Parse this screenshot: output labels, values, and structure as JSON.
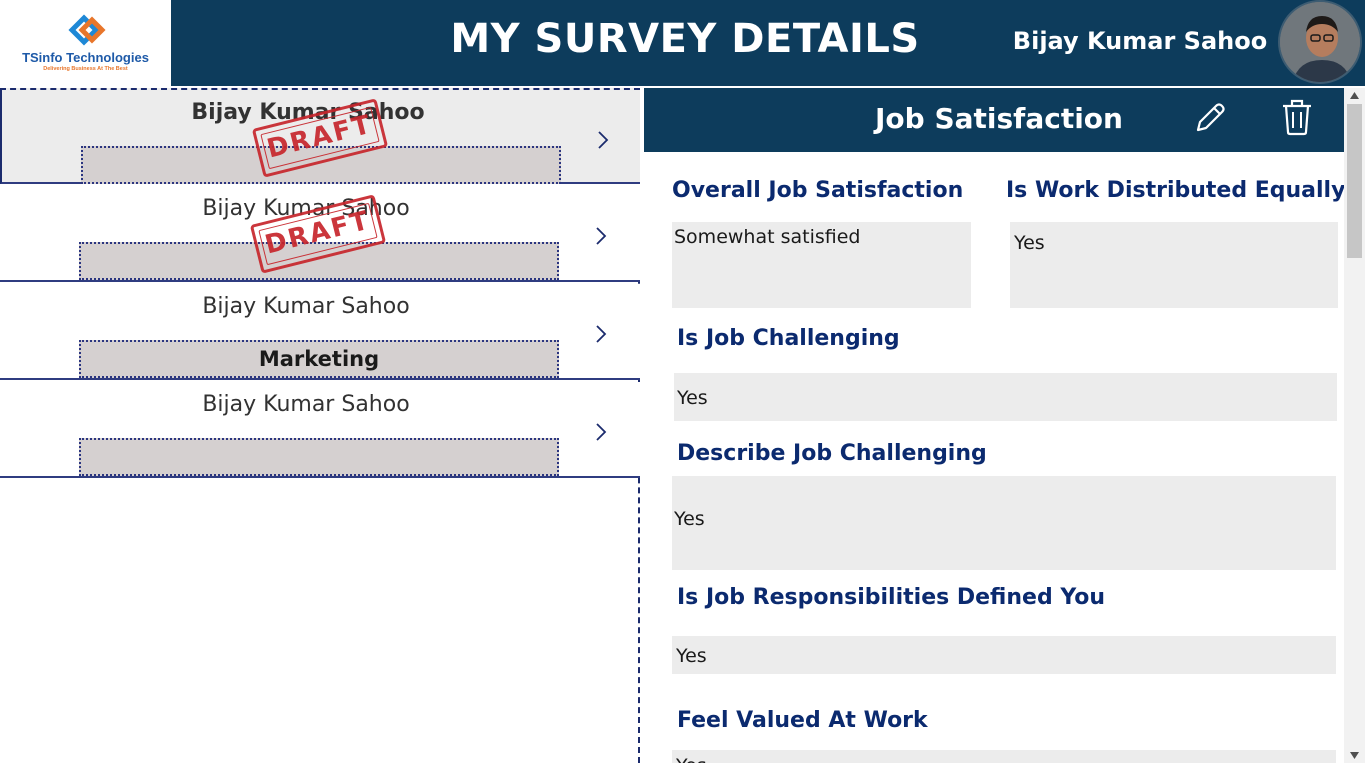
{
  "header": {
    "logo": {
      "name": "TSinfo Technologies",
      "tagline": "Delivering Business At The Best"
    },
    "title": "MY SURVEY DETAILS",
    "user_name": "Bijay Kumar Sahoo"
  },
  "gallery": {
    "items": [
      {
        "name": "Bijay Kumar Sahoo",
        "department": "",
        "stamp": "DRAFT",
        "selected": true
      },
      {
        "name": "Bijay Kumar Sahoo",
        "department": "",
        "stamp": "DRAFT",
        "selected": false
      },
      {
        "name": "Bijay Kumar Sahoo",
        "department": "Marketing",
        "stamp": "",
        "selected": false
      },
      {
        "name": "Bijay Kumar Sahoo",
        "department": "",
        "stamp": "",
        "selected": false
      }
    ]
  },
  "detail": {
    "title": "Job Satisfaction",
    "fields": {
      "overall_label": "Overall Job Satisfaction",
      "overall_value": "Somewhat satisfied",
      "distributed_label": "Is Work Distributed Equally",
      "distributed_value": "Yes",
      "challenging_label": "Is Job Challenging",
      "challenging_value": "Yes",
      "describe_label": "Describe Job Challenging",
      "describe_value": "Yes",
      "responsibilities_label": "Is Job Responsibilities Defined You",
      "responsibilities_value": "Yes",
      "valued_label": "Feel Valued At Work",
      "valued_value": "Yes"
    }
  },
  "colors": {
    "header_bg": "#0d3c5c",
    "label_color": "#0b2a6f",
    "stamp_color": "#c7262c",
    "field_bg": "#ececec"
  }
}
